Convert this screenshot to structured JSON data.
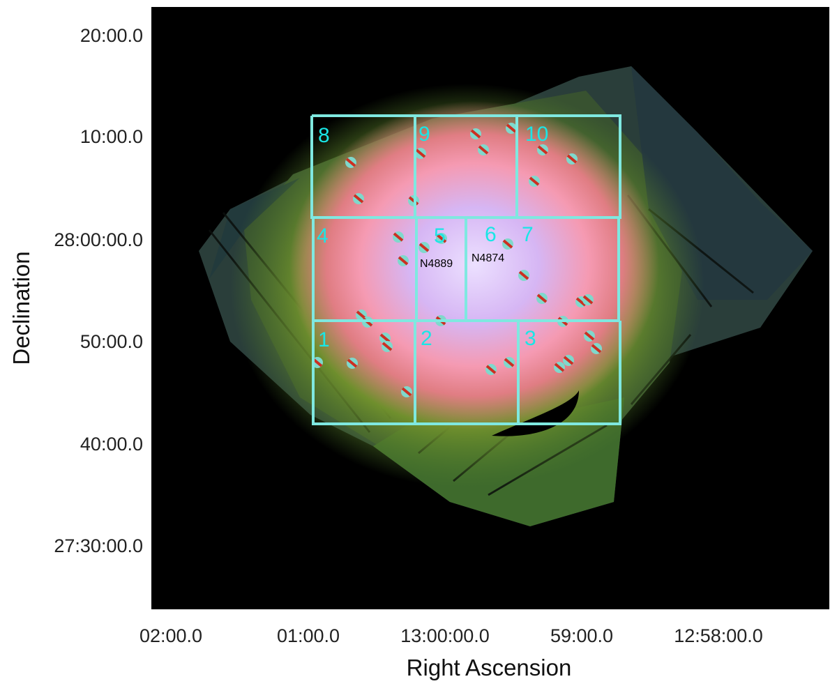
{
  "figure": {
    "y_axis_label": "Declination",
    "x_axis_label": "Right Ascension",
    "y_ticks": [
      "20:00.0",
      "10:00.0",
      "28:00:00.0",
      "50:00.0",
      "40:00.0",
      "27:30:00.0"
    ],
    "x_ticks": [
      "02:00.0",
      "01:00.0",
      "13:00:00.0",
      "59:00.0",
      "12:58:00.0"
    ],
    "regions": [
      "8",
      "9",
      "10",
      "4",
      "5",
      "6",
      "7",
      "1",
      "2",
      "3"
    ],
    "galaxies": [
      "N4889",
      "N4874"
    ]
  },
  "colors": {
    "background": "#000000",
    "region_outline": "#7fe8e0",
    "region_label": "#19e6e6",
    "core": "#dcc8ff",
    "halo_pink": "#f08caa",
    "halo_green": "#5a8a28",
    "point_source_mask": "#cc2f22"
  }
}
